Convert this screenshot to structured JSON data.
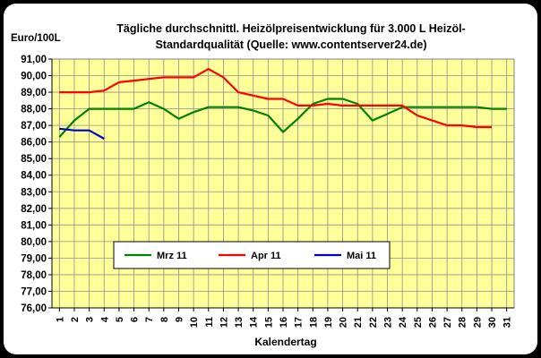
{
  "chart_data": {
    "type": "line",
    "title_line1": "Tägliche durchschnittl. Heizölpreisentwicklung für 3.000 L Heizöl-",
    "title_line2": "Standardqualität (Quelle: www.contentserver24.de)",
    "ylabel": "Euro/100L",
    "xlabel": "Kalendertag",
    "ylim": [
      76,
      91
    ],
    "y_ticks": [
      "76,00",
      "77,00",
      "78,00",
      "79,00",
      "80,00",
      "81,00",
      "82,00",
      "83,00",
      "84,00",
      "85,00",
      "86,00",
      "87,00",
      "88,00",
      "89,00",
      "90,00",
      "91,00"
    ],
    "x_ticks": [
      "1",
      "2",
      "3",
      "4",
      "5",
      "6",
      "7",
      "8",
      "9",
      "10",
      "11",
      "12",
      "13",
      "14",
      "15",
      "16",
      "17",
      "18",
      "19",
      "20",
      "21",
      "22",
      "23",
      "24",
      "25",
      "26",
      "27",
      "28",
      "29",
      "30",
      "31"
    ],
    "grid": true,
    "legend_position": "lower-center",
    "plot_background": "#ffff99",
    "series": [
      {
        "name": "Mrz 11",
        "color": "#008000",
        "x": [
          1,
          2,
          3,
          4,
          5,
          6,
          7,
          8,
          9,
          10,
          11,
          12,
          13,
          14,
          15,
          16,
          17,
          18,
          19,
          20,
          21,
          22,
          23,
          24,
          25,
          26,
          27,
          28,
          29,
          30,
          31
        ],
        "values": [
          86.3,
          87.3,
          88.0,
          88.0,
          88.0,
          88.0,
          88.4,
          88.0,
          87.4,
          87.8,
          88.1,
          88.1,
          88.1,
          87.9,
          87.6,
          86.6,
          87.4,
          88.3,
          88.6,
          88.6,
          88.3,
          87.3,
          87.7,
          88.1,
          88.1,
          88.1,
          88.1,
          88.1,
          88.1,
          88.0,
          88.0
        ]
      },
      {
        "name": "Apr 11",
        "color": "#ff0000",
        "x": [
          1,
          2,
          3,
          4,
          5,
          6,
          7,
          8,
          9,
          10,
          11,
          12,
          13,
          14,
          15,
          16,
          17,
          18,
          19,
          20,
          21,
          22,
          23,
          24,
          25,
          26,
          27,
          28,
          29,
          30
        ],
        "values": [
          89.0,
          89.0,
          89.0,
          89.1,
          89.6,
          89.7,
          89.8,
          89.9,
          89.9,
          89.9,
          90.4,
          89.9,
          89.0,
          88.8,
          88.6,
          88.6,
          88.2,
          88.2,
          88.3,
          88.2,
          88.2,
          88.2,
          88.2,
          88.2,
          87.6,
          87.3,
          87.0,
          87.0,
          86.9,
          86.9
        ]
      },
      {
        "name": "Mai 11",
        "color": "#0000cc",
        "x": [
          1,
          2,
          3,
          4
        ],
        "values": [
          86.8,
          86.7,
          86.7,
          86.2
        ]
      }
    ]
  }
}
